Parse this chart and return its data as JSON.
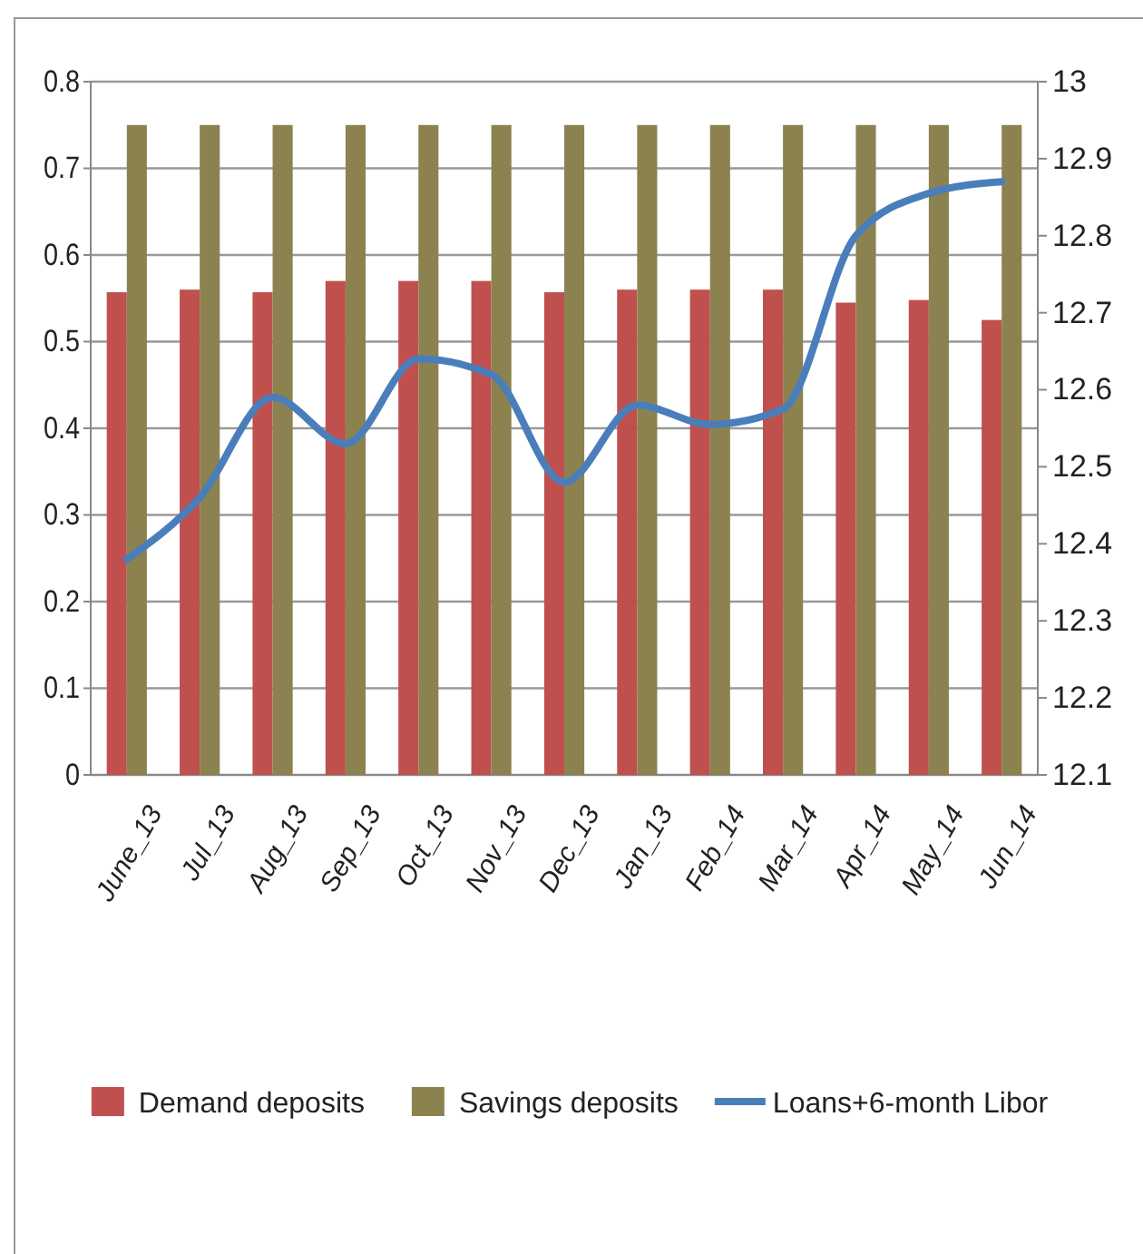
{
  "chart_data": {
    "type": "bar",
    "categories": [
      "June_13",
      "Jul_13",
      "Aug_13",
      "Sep_13",
      "Oct_13",
      "Nov_13",
      "Dec_13",
      "Jan_13",
      "Feb_14",
      "Mar_14",
      "Apr_14",
      "May_14",
      "Jun_14"
    ],
    "series": [
      {
        "name": "Demand deposits",
        "color": "#c0504d",
        "values": [
          0.557,
          0.56,
          0.557,
          0.57,
          0.57,
          0.57,
          0.557,
          0.56,
          0.56,
          0.56,
          0.545,
          0.548,
          0.525
        ]
      },
      {
        "name": "Savings deposits",
        "color": "#8b8250",
        "values": [
          0.75,
          0.75,
          0.75,
          0.75,
          0.75,
          0.75,
          0.75,
          0.75,
          0.75,
          0.75,
          0.75,
          0.75,
          0.75
        ]
      },
      {
        "name": "Loans+6-month Libor",
        "type": "line",
        "axis": "y2",
        "color": "#4a7ebb",
        "values": [
          12.38,
          12.46,
          12.59,
          12.53,
          12.64,
          12.62,
          12.48,
          12.58,
          12.555,
          12.575,
          12.8,
          12.855,
          12.87
        ]
      }
    ],
    "ylim": [
      0,
      0.8
    ],
    "yticks": [
      0,
      0.1,
      0.2,
      0.3,
      0.4,
      0.5,
      0.6,
      0.7,
      0.8
    ],
    "y2lim": [
      12.1,
      13
    ],
    "y2ticks": [
      12.1,
      12.2,
      12.3,
      12.4,
      12.5,
      12.6,
      12.7,
      12.8,
      12.9,
      13
    ],
    "grid": "y",
    "legend": "bottom"
  }
}
